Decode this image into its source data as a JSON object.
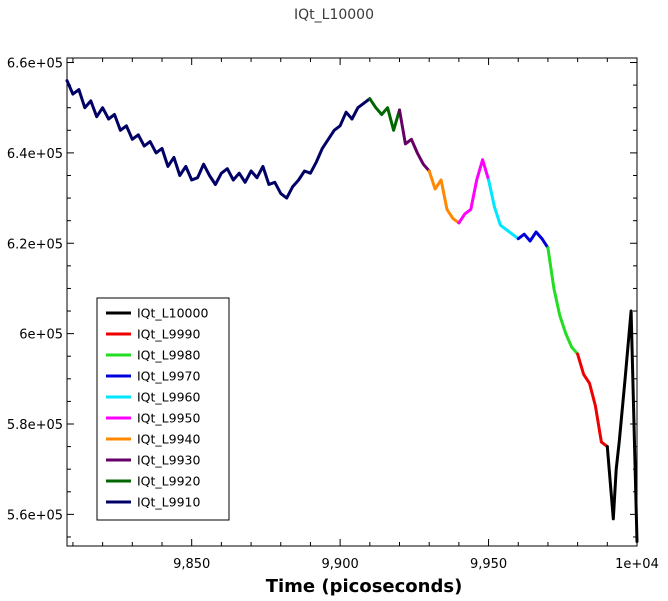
{
  "chart_data": {
    "type": "line",
    "title": "IQt_L10000",
    "xlabel": "Time (picoseconds)",
    "ylabel": "",
    "xlim": [
      9808,
      10000
    ],
    "ylim": [
      553000,
      661000
    ],
    "x_ticks": [
      {
        "value": 9850,
        "label": "9,850"
      },
      {
        "value": 9900,
        "label": "9,900"
      },
      {
        "value": 9950,
        "label": "9,950"
      },
      {
        "value": 10000,
        "label": "1e+04"
      }
    ],
    "y_ticks": [
      {
        "value": 560000,
        "label": "5.6e+05"
      },
      {
        "value": 580000,
        "label": "5.8e+05"
      },
      {
        "value": 600000,
        "label": "6e+05"
      },
      {
        "value": 620000,
        "label": "6.2e+05"
      },
      {
        "value": 640000,
        "label": "6.4e+05"
      },
      {
        "value": 660000,
        "label": "6.6e+05"
      }
    ],
    "grid": false,
    "legend_position": "bottom-left",
    "legend": [
      "IQt_L10000",
      "IQt_L9990",
      "IQt_L9980",
      "IQt_L9970",
      "IQt_L9960",
      "IQt_L9950",
      "IQt_L9940",
      "IQt_L9930",
      "IQt_L9920",
      "IQt_L9910"
    ],
    "series": [
      {
        "name": "IQt_L9910",
        "color": "#000066",
        "points": [
          [
            9808,
            656000
          ],
          [
            9810,
            653000
          ],
          [
            9812,
            654000
          ],
          [
            9814,
            650000
          ],
          [
            9816,
            651500
          ],
          [
            9818,
            648000
          ],
          [
            9820,
            650000
          ],
          [
            9822,
            647500
          ],
          [
            9824,
            648500
          ],
          [
            9826,
            645000
          ],
          [
            9828,
            646000
          ],
          [
            9830,
            643000
          ],
          [
            9832,
            644000
          ],
          [
            9834,
            641500
          ],
          [
            9836,
            642500
          ],
          [
            9838,
            640000
          ],
          [
            9840,
            641000
          ],
          [
            9842,
            637000
          ],
          [
            9844,
            639000
          ],
          [
            9846,
            635000
          ],
          [
            9848,
            637000
          ],
          [
            9850,
            634000
          ],
          [
            9852,
            634500
          ],
          [
            9854,
            637500
          ],
          [
            9856,
            635000
          ],
          [
            9858,
            633000
          ],
          [
            9860,
            635500
          ],
          [
            9862,
            636500
          ],
          [
            9864,
            634000
          ],
          [
            9866,
            635500
          ],
          [
            9868,
            633500
          ],
          [
            9870,
            636000
          ],
          [
            9872,
            634500
          ],
          [
            9874,
            637000
          ],
          [
            9876,
            633000
          ],
          [
            9878,
            633500
          ],
          [
            9880,
            631000
          ],
          [
            9882,
            630000
          ],
          [
            9884,
            632500
          ],
          [
            9886,
            634000
          ],
          [
            9888,
            636000
          ],
          [
            9890,
            635500
          ],
          [
            9892,
            638000
          ],
          [
            9894,
            641000
          ],
          [
            9896,
            643000
          ],
          [
            9898,
            645000
          ],
          [
            9900,
            646000
          ],
          [
            9902,
            649000
          ],
          [
            9904,
            647500
          ],
          [
            9906,
            650000
          ],
          [
            9908,
            651000
          ],
          [
            9910,
            652000
          ]
        ]
      },
      {
        "name": "IQt_L9920",
        "color": "#006600",
        "points": [
          [
            9910,
            652000
          ],
          [
            9912,
            650000
          ],
          [
            9914,
            648500
          ],
          [
            9916,
            650000
          ],
          [
            9918,
            645000
          ],
          [
            9920,
            649500
          ]
        ]
      },
      {
        "name": "IQt_L9930",
        "color": "#660066",
        "points": [
          [
            9920,
            649500
          ],
          [
            9922,
            642000
          ],
          [
            9924,
            643000
          ],
          [
            9926,
            640000
          ],
          [
            9928,
            637500
          ],
          [
            9930,
            636000
          ]
        ]
      },
      {
        "name": "IQt_L9940",
        "color": "#ff8800",
        "points": [
          [
            9930,
            636000
          ],
          [
            9932,
            632000
          ],
          [
            9934,
            634000
          ],
          [
            9936,
            627500
          ],
          [
            9938,
            625500
          ],
          [
            9940,
            624500
          ]
        ]
      },
      {
        "name": "IQt_L9950",
        "color": "#ff00ff",
        "points": [
          [
            9940,
            624500
          ],
          [
            9942,
            626500
          ],
          [
            9944,
            627500
          ],
          [
            9946,
            634000
          ],
          [
            9948,
            638500
          ],
          [
            9950,
            634000
          ]
        ]
      },
      {
        "name": "IQt_L9960",
        "color": "#00e6ff",
        "points": [
          [
            9950,
            634000
          ],
          [
            9952,
            628000
          ],
          [
            9954,
            624000
          ],
          [
            9956,
            623000
          ],
          [
            9958,
            622000
          ],
          [
            9960,
            621000
          ]
        ]
      },
      {
        "name": "IQt_L9970",
        "color": "#0000dd",
        "points": [
          [
            9960,
            621000
          ],
          [
            9962,
            622000
          ],
          [
            9964,
            620500
          ],
          [
            9966,
            622500
          ],
          [
            9968,
            621000
          ],
          [
            9970,
            619000
          ]
        ]
      },
      {
        "name": "IQt_L9980",
        "color": "#22dd22",
        "points": [
          [
            9970,
            619000
          ],
          [
            9972,
            610000
          ],
          [
            9974,
            604000
          ],
          [
            9976,
            600000
          ],
          [
            9978,
            597000
          ],
          [
            9980,
            595500
          ]
        ]
      },
      {
        "name": "IQt_L9990",
        "color": "#ee0000",
        "points": [
          [
            9980,
            595500
          ],
          [
            9982,
            591000
          ],
          [
            9984,
            589000
          ],
          [
            9986,
            584000
          ],
          [
            9988,
            576000
          ],
          [
            9990,
            575000
          ]
        ]
      },
      {
        "name": "IQt_L10000",
        "color": "#000000",
        "points": [
          [
            9990,
            575000
          ],
          [
            9992,
            559000
          ],
          [
            9993,
            570000
          ],
          [
            9994,
            576000
          ],
          [
            9996,
            590000
          ],
          [
            9998,
            605000
          ],
          [
            10000,
            554000
          ]
        ]
      }
    ]
  }
}
